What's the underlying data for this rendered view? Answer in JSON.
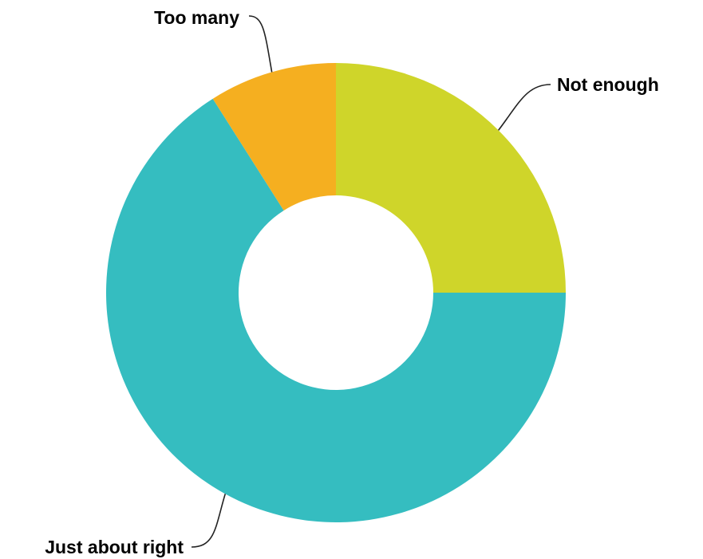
{
  "chart_data": {
    "type": "pie",
    "donut": true,
    "title": "",
    "labels": [
      "Not enough",
      "Just about right",
      "Too many"
    ],
    "values": [
      25,
      66,
      9
    ],
    "colors": [
      "#CFD52A",
      "#35BDC0",
      "#F5AF20"
    ],
    "start_angle_deg": 0,
    "direction": "clockwise",
    "legend": "none",
    "label_style": "outside-with-leader-lines"
  }
}
